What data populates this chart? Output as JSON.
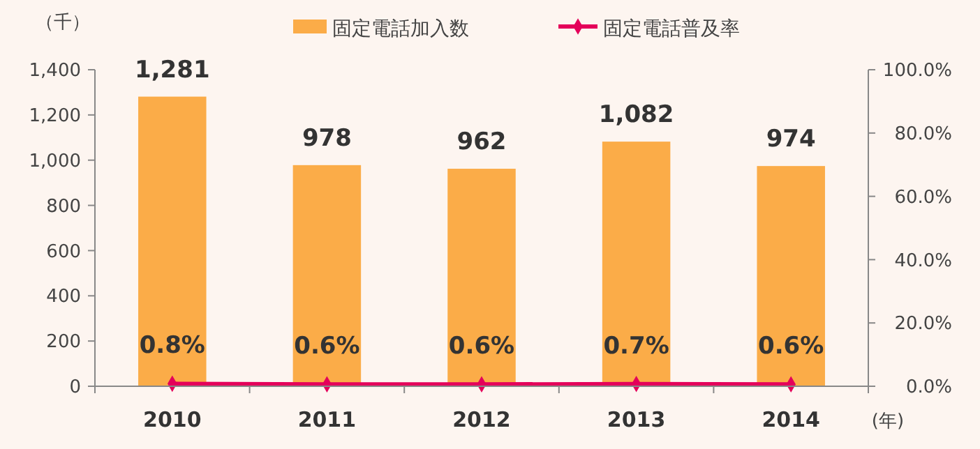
{
  "chart_data": {
    "type": "bar",
    "ylabel": "（千）",
    "xlabel": "(年)",
    "categories": [
      "2010",
      "2011",
      "2012",
      "2013",
      "2014"
    ],
    "series": [
      {
        "name": "固定電話加入数",
        "color": "#fbac48",
        "values": [
          1281,
          978,
          962,
          1082,
          974
        ],
        "value_labels": [
          "1,281",
          "978",
          "962",
          "1,082",
          "974"
        ]
      },
      {
        "name": "固定電話普及率",
        "type": "line",
        "axis": "y2",
        "color": "#e4005a",
        "marker": "diamond",
        "values": [
          0.8,
          0.6,
          0.6,
          0.7,
          0.6
        ],
        "value_labels": [
          "0.8%",
          "0.6%",
          "0.6%",
          "0.7%",
          "0.6%"
        ]
      }
    ],
    "ylim": [
      0,
      1400
    ],
    "yticks": [
      0,
      200,
      400,
      600,
      800,
      {
        "value": 1000,
        "label": "1,000"
      },
      {
        "value": 1200,
        "label": "1,200"
      },
      {
        "value": 1400,
        "label": "1,400"
      }
    ],
    "y2lim": [
      0,
      100
    ],
    "y2ticks": [
      {
        "value": 0,
        "label": "0.0%"
      },
      {
        "value": 20,
        "label": "20.0%"
      },
      {
        "value": 40,
        "label": "40.0%"
      },
      {
        "value": 60,
        "label": "60.0%"
      },
      {
        "value": 80,
        "label": "80.0%"
      },
      {
        "value": 100,
        "label": "100.0%"
      }
    ],
    "grid": false,
    "legend": "top"
  }
}
